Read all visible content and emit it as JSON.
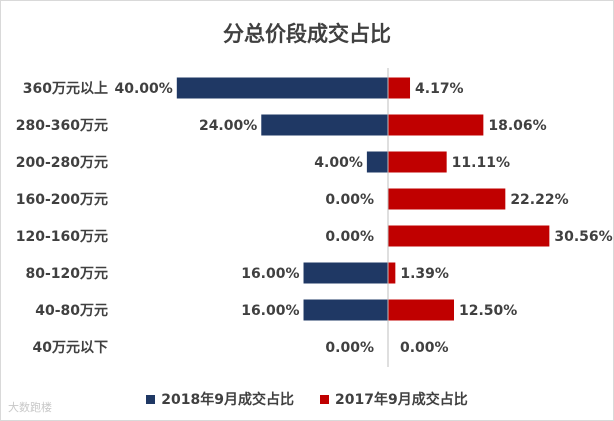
{
  "colors": {
    "series_2018": "#1f3864",
    "series_2017": "#c00000",
    "text": "#404040",
    "axis": "#bfbfbf"
  },
  "chart_data": {
    "type": "bar",
    "orientation": "horizontal-diverging",
    "title": "分总价段成交占比",
    "categories": [
      "360万元以上",
      "280-360万元",
      "200-280万元",
      "160-200万元",
      "120-160万元",
      "80-120万元",
      "40-80万元",
      "40万元以下"
    ],
    "series": [
      {
        "name": "2018年9月成交占比",
        "direction": "left",
        "color": "#1f3864",
        "values": [
          40.0,
          24.0,
          4.0,
          0.0,
          0.0,
          16.0,
          16.0,
          0.0
        ],
        "labels": [
          "40.00%",
          "24.00%",
          "4.00%",
          "0.00%",
          "0.00%",
          "16.00%",
          "16.00%",
          "0.00%"
        ]
      },
      {
        "name": "2017年9月成交占比",
        "direction": "right",
        "color": "#c00000",
        "values": [
          4.17,
          18.06,
          11.11,
          22.22,
          30.56,
          1.39,
          12.5,
          0.0
        ],
        "labels": [
          "4.17%",
          "18.06%",
          "11.11%",
          "22.22%",
          "30.56%",
          "1.39%",
          "12.50%",
          "0.00%"
        ]
      }
    ],
    "legend_position": "bottom",
    "grid": false
  },
  "watermark": "大数跑楼"
}
